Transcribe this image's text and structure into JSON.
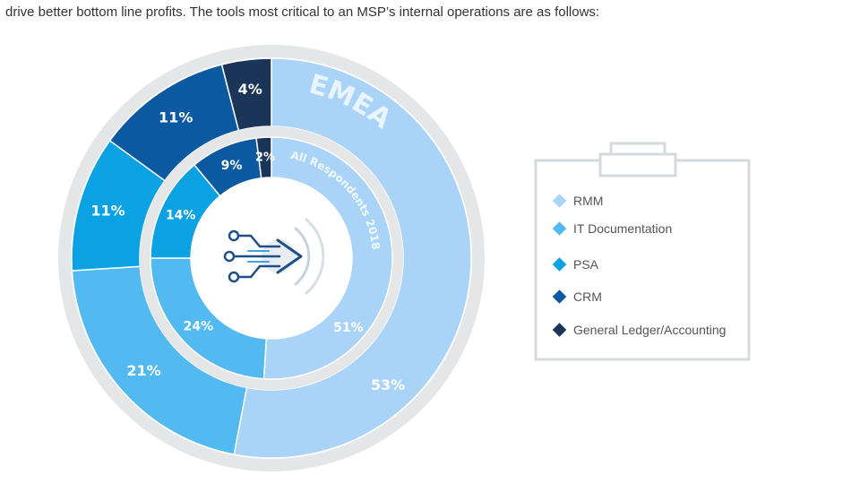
{
  "intro_text": "drive better bottom line profits. The tools most critical to an MSP’s internal operations are as follows:",
  "chart_data": {
    "type": "pie",
    "subtype": "double-donut",
    "categories": [
      "RMM",
      "IT Documentation",
      "PSA",
      "CRM",
      "General Ledger/Accounting"
    ],
    "colors": [
      "#a9d3f7",
      "#52baf0",
      "#0aa2e2",
      "#0b5aa1",
      "#1b3558"
    ],
    "series": [
      {
        "name": "EMEA",
        "ring": "outer",
        "values": [
          53,
          21,
          11,
          11,
          4
        ]
      },
      {
        "name": "All Respondents 2018",
        "ring": "inner",
        "values": [
          51,
          24,
          14,
          9,
          2
        ]
      }
    ],
    "value_suffix": "%",
    "legend_position": "right"
  },
  "legend": {
    "items": [
      {
        "label": "RMM",
        "color": "#a9d3f7"
      },
      {
        "label": "IT Documentation",
        "color": "#52baf0"
      },
      {
        "label": "PSA",
        "color": "#0aa2e2"
      },
      {
        "label": "CRM",
        "color": "#0b5aa1"
      },
      {
        "label": "General Ledger/Accounting",
        "color": "#1b3558"
      }
    ]
  },
  "center_icon": "circuit-arrow-icon",
  "legend_icon": "clipboard-icon"
}
